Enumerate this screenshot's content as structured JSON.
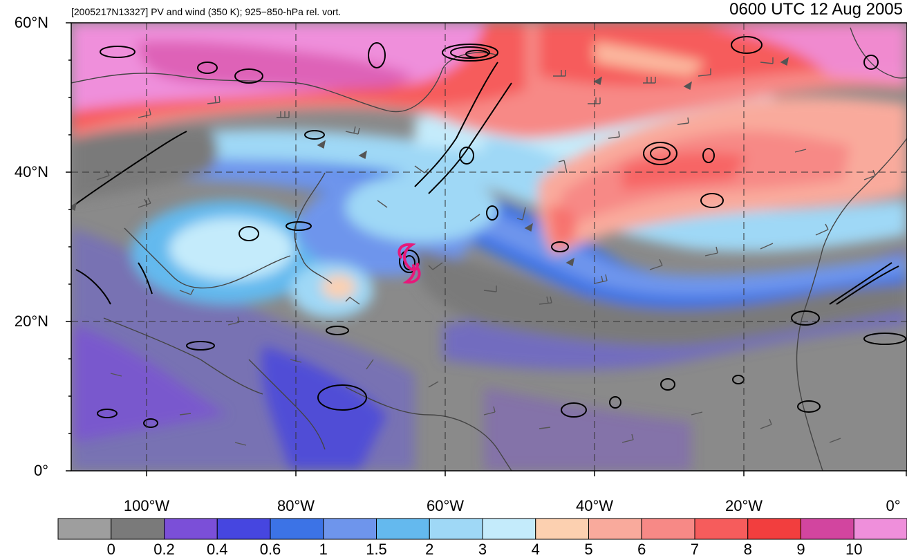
{
  "map": {
    "caption": "[2005217N13327] PV and wind (350 K); 925−850-hPa rel. vort.",
    "timestamp": "0600 UTC 12 Aug 2005",
    "lat_labels": [
      "60°N",
      "40°N",
      "20°N",
      "0°"
    ],
    "lon_labels": [
      "100°W",
      "80°W",
      "60°W",
      "40°W",
      "20°W",
      "0°"
    ],
    "extent": {
      "lon_min": -110,
      "lon_max": 0,
      "lat_min": 0,
      "lat_max": 60
    },
    "storm_symbol": {
      "name": "tropical-storm-symbol",
      "lon": -65,
      "lat": 27.5,
      "color": "#e6197a"
    }
  },
  "colorbar": {
    "colors": [
      "#9e9e9e",
      "#7a7a7a",
      "#7b4fd8",
      "#4646e0",
      "#3c73e6",
      "#6e95ec",
      "#64b9ee",
      "#9fd8f6",
      "#c4ebfb",
      "#fcd0b0",
      "#f9aa9c",
      "#f78986",
      "#f65c5c",
      "#f23e3e",
      "#d2459f",
      "#ef8fdb"
    ],
    "labels": [
      "0",
      "0.2",
      "0.4",
      "0.6",
      "1",
      "1.5",
      "2",
      "3",
      "4",
      "5",
      "6",
      "7",
      "8",
      "9",
      "10"
    ]
  }
}
